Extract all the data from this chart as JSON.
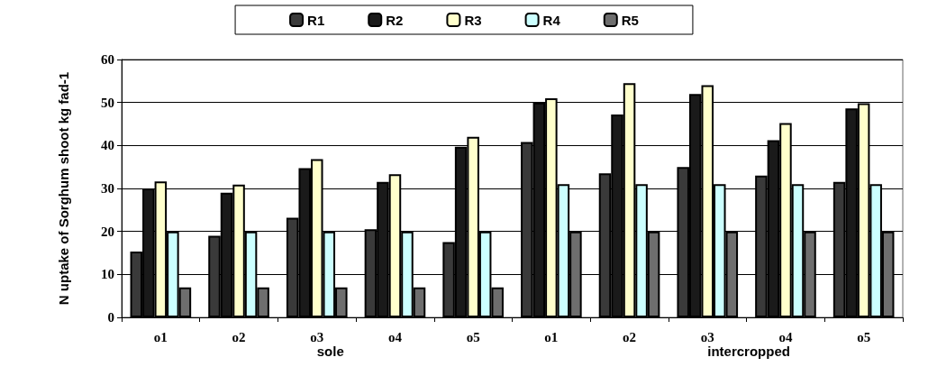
{
  "chart_data": {
    "type": "bar",
    "ylabel": "N uptake of Sorghum shoot kg fad-1",
    "categories": [
      "o1",
      "o2",
      "o3",
      "o4",
      "o5",
      "o1",
      "o2",
      "o3",
      "o4",
      "o5"
    ],
    "series": [
      {
        "name": "R1",
        "color": "#3a3a3a",
        "values": [
          15.3,
          19,
          23.2,
          20.5,
          17.5,
          40.8,
          33.5,
          35,
          33,
          31.5
        ]
      },
      {
        "name": "R2",
        "color": "#1a1a1a",
        "values": [
          30,
          29,
          34.7,
          31.5,
          39.7,
          50,
          47.2,
          52,
          41.2,
          48.6
        ]
      },
      {
        "name": "R3",
        "color": "#ffffcc",
        "values": [
          31.6,
          30.9,
          36.8,
          33.3,
          42,
          51,
          54.5,
          54,
          45.2,
          49.8
        ]
      },
      {
        "name": "R4",
        "color": "#ccffff",
        "values": [
          20,
          20,
          20,
          20,
          20,
          31,
          31,
          31,
          31,
          31
        ]
      },
      {
        "name": "R5",
        "color": "#6e6e6e",
        "values": [
          7,
          7,
          7,
          7,
          7,
          20,
          20,
          20,
          20,
          20
        ]
      }
    ],
    "ylim": [
      0,
      60
    ],
    "yticks": [
      0,
      10,
      20,
      30,
      40,
      50,
      60
    ],
    "grid": "y",
    "legend": "top",
    "annotations": [
      "sole",
      "intercropped"
    ]
  }
}
